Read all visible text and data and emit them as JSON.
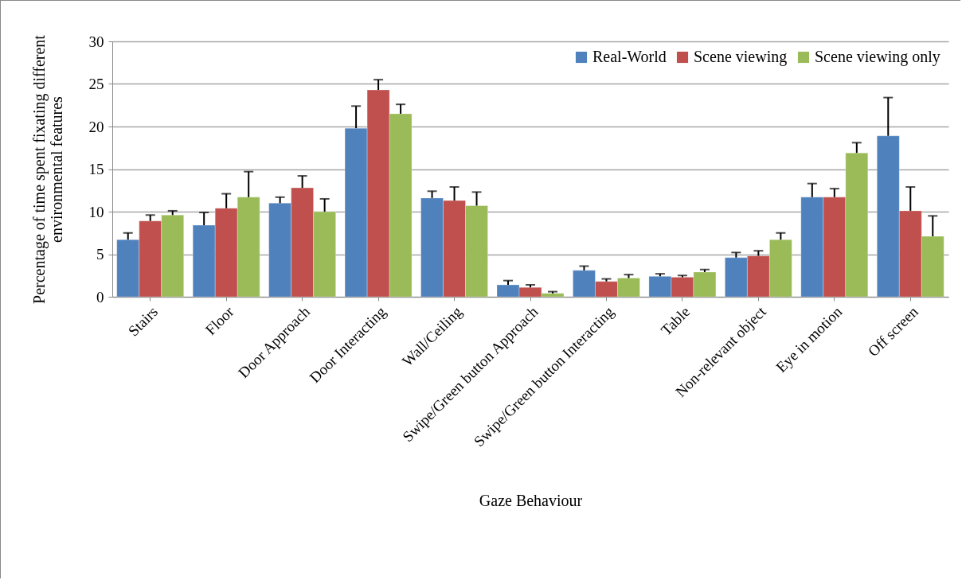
{
  "chart_data": {
    "type": "bar",
    "xlabel": "Gaze Behaviour",
    "ylabel": "Percentage of time spent fixating different\nenvironmental features",
    "categories": [
      "Stairs",
      "Floor",
      "Door Approach",
      "Door Interacting",
      "Wall/Ceiling",
      "Swipe/Green button Approach",
      "Swipe/Green button Interacting",
      "Table",
      "Non-relevant object",
      "Eye in motion",
      "Off screen"
    ],
    "series": [
      {
        "name": "Real-World",
        "color": "#4f81bd",
        "values": [
          6.7,
          8.4,
          11.0,
          19.8,
          11.6,
          1.4,
          3.1,
          2.4,
          4.6,
          11.7,
          18.9
        ],
        "errors": [
          [
            6.7,
            7.5
          ],
          [
            8.4,
            9.9
          ],
          [
            11.0,
            11.7
          ],
          [
            19.8,
            22.4
          ],
          [
            11.6,
            12.4
          ],
          [
            1.4,
            1.9
          ],
          [
            3.1,
            3.6
          ],
          [
            2.4,
            2.7
          ],
          [
            4.6,
            5.2
          ],
          [
            11.7,
            13.3
          ],
          [
            18.9,
            23.4
          ]
        ]
      },
      {
        "name": "Scene viewing",
        "color": "#c0504d",
        "values": [
          8.9,
          10.4,
          12.8,
          24.3,
          11.3,
          1.1,
          1.8,
          2.3,
          4.8,
          11.7,
          10.1
        ],
        "errors": [
          [
            8.9,
            9.6
          ],
          [
            10.4,
            12.1
          ],
          [
            12.8,
            14.2
          ],
          [
            24.3,
            25.5
          ],
          [
            11.3,
            12.9
          ],
          [
            1.1,
            1.4
          ],
          [
            1.8,
            2.1
          ],
          [
            2.3,
            2.5
          ],
          [
            4.8,
            5.4
          ],
          [
            11.7,
            12.7
          ],
          [
            10.1,
            12.9
          ]
        ]
      },
      {
        "name": "Scene viewing only",
        "color": "#9bbb59",
        "values": [
          9.6,
          11.7,
          10.0,
          21.5,
          10.7,
          0.4,
          2.2,
          2.9,
          6.7,
          16.9,
          7.1
        ],
        "errors": [
          [
            9.6,
            10.1
          ],
          [
            11.7,
            14.7
          ],
          [
            10.0,
            11.5
          ],
          [
            21.5,
            22.6
          ],
          [
            10.7,
            12.3
          ],
          [
            0.4,
            0.6
          ],
          [
            2.2,
            2.6
          ],
          [
            2.9,
            3.2
          ],
          [
            6.7,
            7.5
          ],
          [
            16.9,
            18.1
          ],
          [
            7.1,
            9.5
          ]
        ]
      }
    ],
    "ylim": [
      0,
      30
    ],
    "yticks": [
      0,
      5,
      10,
      15,
      20,
      25,
      30
    ],
    "grid": "y",
    "legend": "top right"
  }
}
